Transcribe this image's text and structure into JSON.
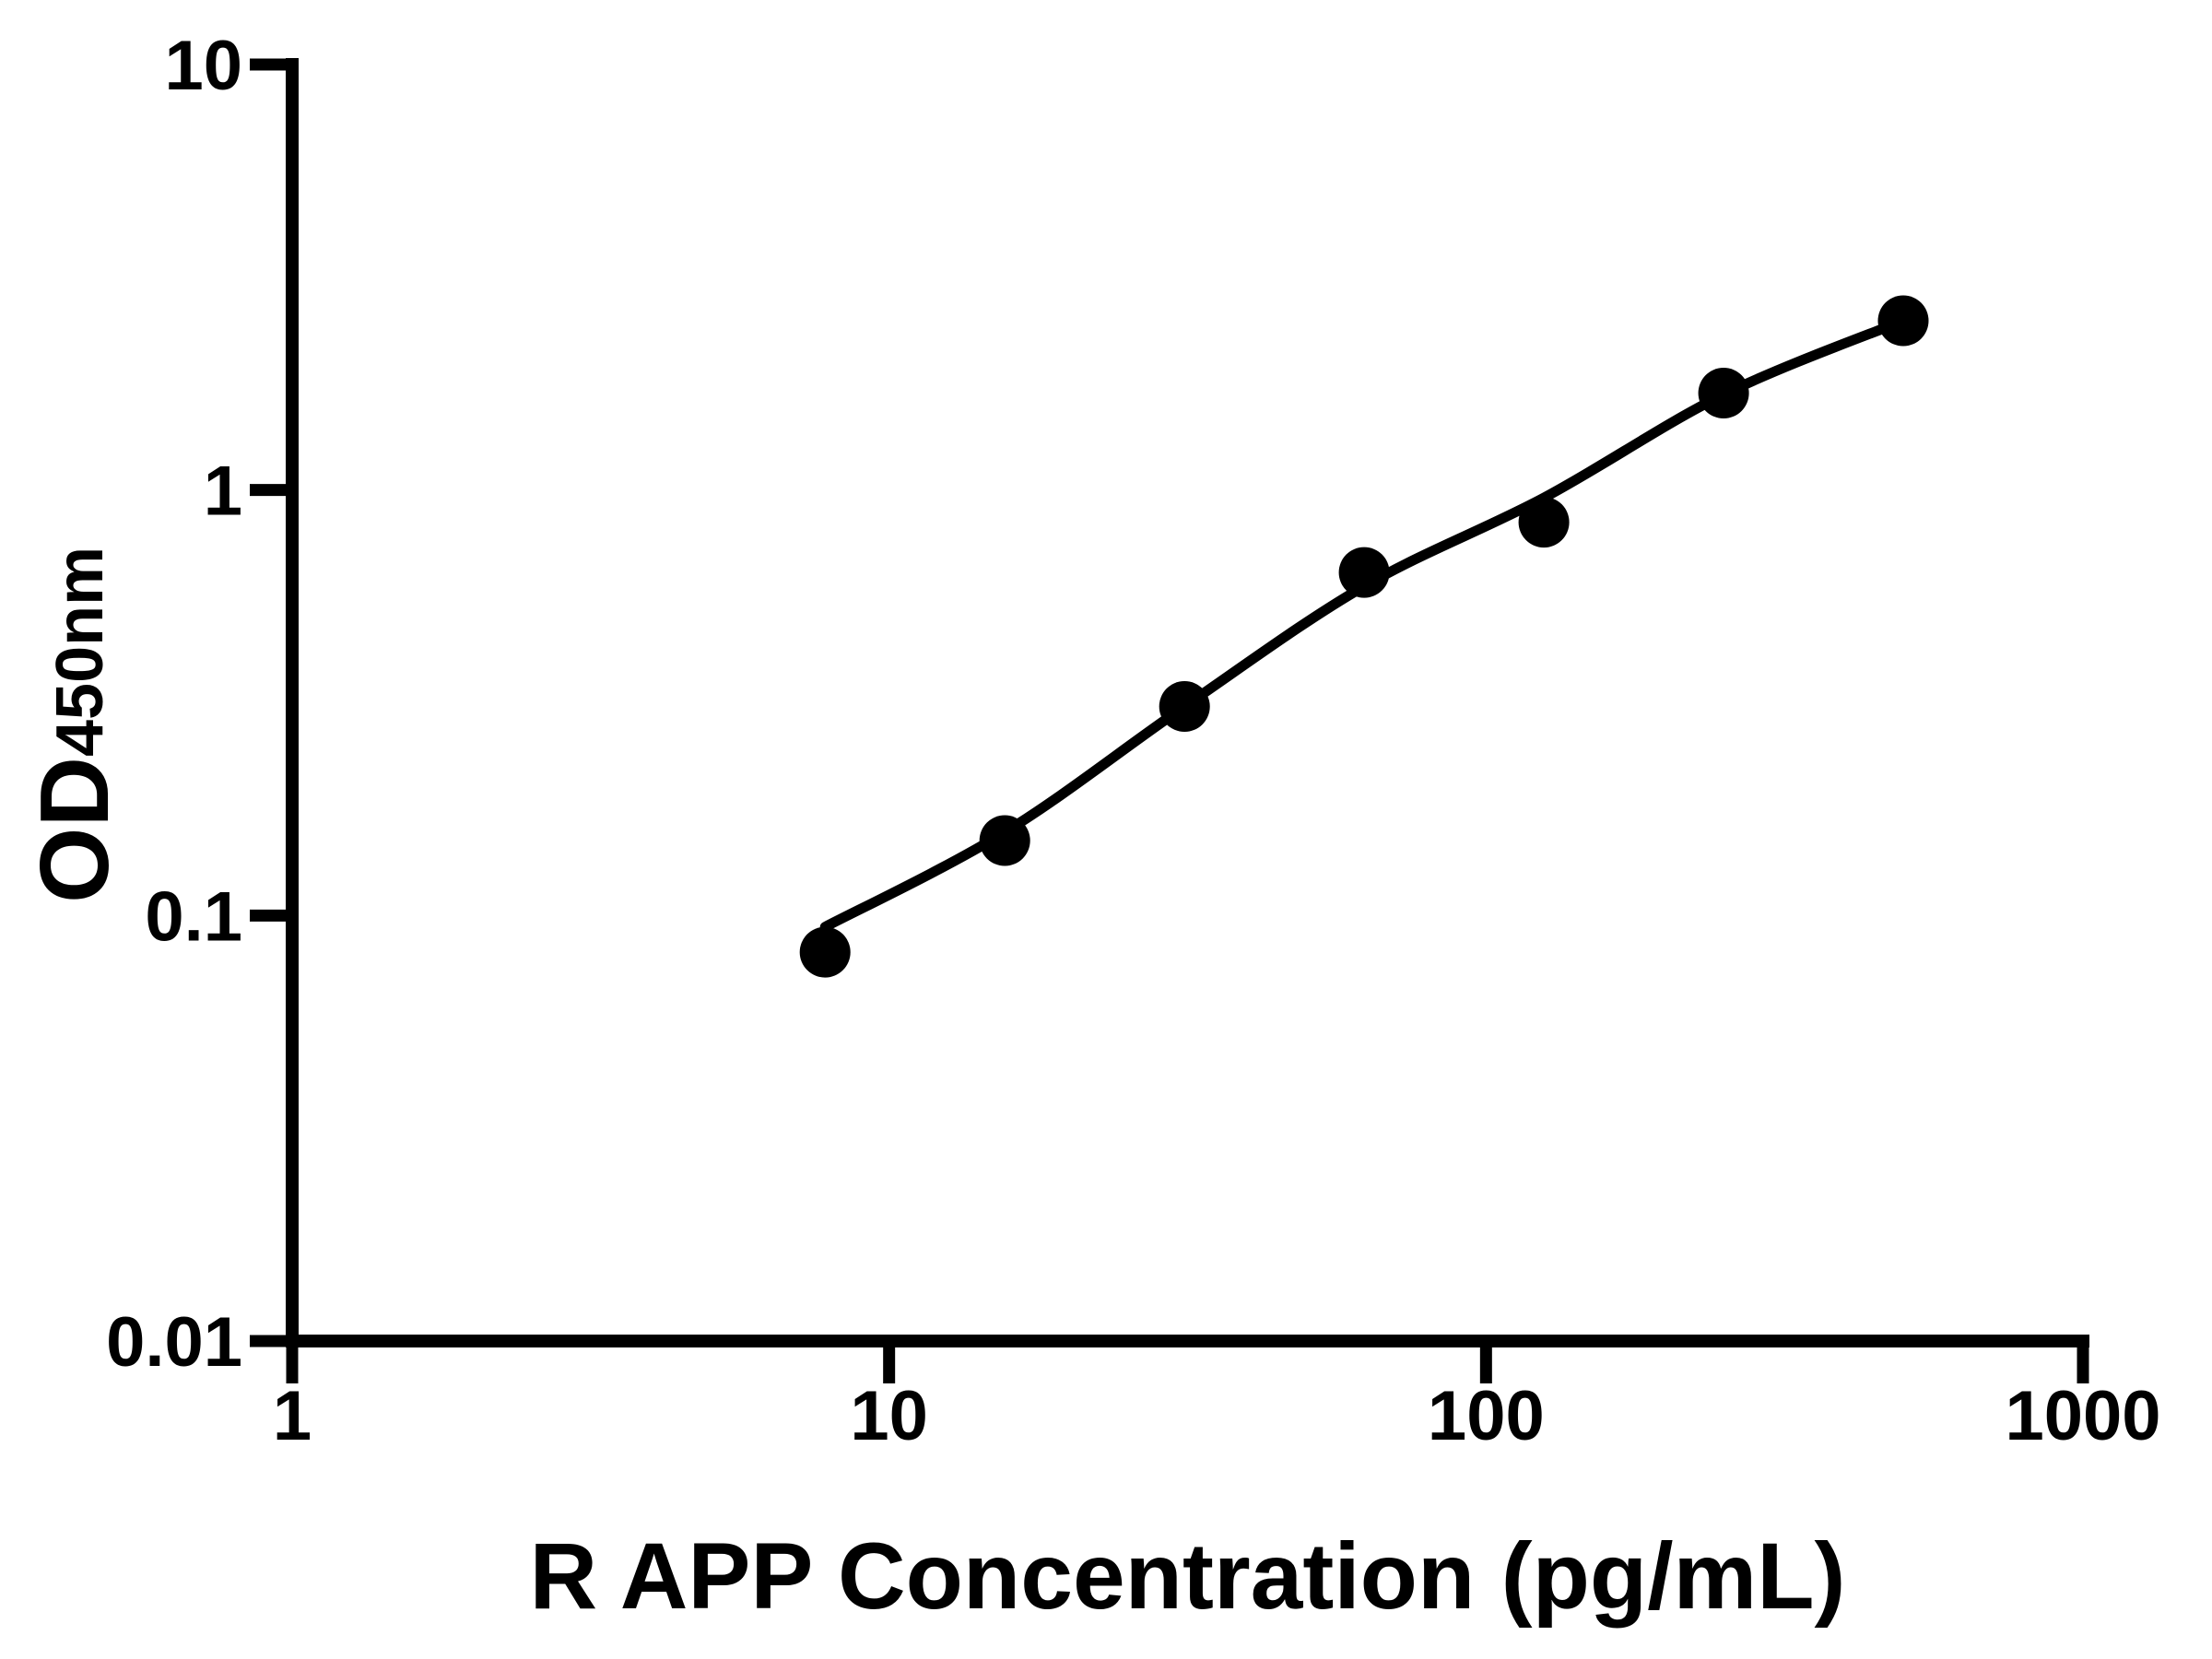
{
  "chart_data": {
    "type": "scatter",
    "title": "",
    "xlabel": "R APP Concentration (pg/mL)",
    "ylabel": "OD450nm",
    "ylabel_main": "OD",
    "ylabel_sub": "450nm",
    "x_scale": "log",
    "y_scale": "log",
    "xlim": [
      1,
      1000
    ],
    "ylim": [
      0.01,
      10
    ],
    "x_ticks": [
      1,
      10,
      100,
      1000
    ],
    "x_tick_labels": [
      "1",
      "10",
      "100",
      "1000"
    ],
    "y_ticks": [
      10,
      1,
      0.1,
      0.01
    ],
    "y_tick_labels": [
      "10",
      "1",
      "0.1",
      "0.01"
    ],
    "grid": false,
    "legend_position": "none",
    "colors": {
      "marker": "#000000",
      "curve": "#000000",
      "axis": "#000000",
      "text": "#000000",
      "background": "#ffffff"
    },
    "series": [
      {
        "name": "standard data points",
        "type": "scatter",
        "x": [
          7.8125,
          15.625,
          31.25,
          62.5,
          125,
          250,
          500
        ],
        "y": [
          0.082,
          0.15,
          0.31,
          0.64,
          0.84,
          1.69,
          2.5
        ]
      },
      {
        "name": "fit curve",
        "type": "line",
        "x": [
          7.8125,
          15.625,
          31.25,
          62.5,
          125,
          250,
          500
        ],
        "y": [
          0.094,
          0.157,
          0.31,
          0.594,
          0.959,
          1.676,
          2.5
        ]
      }
    ]
  }
}
